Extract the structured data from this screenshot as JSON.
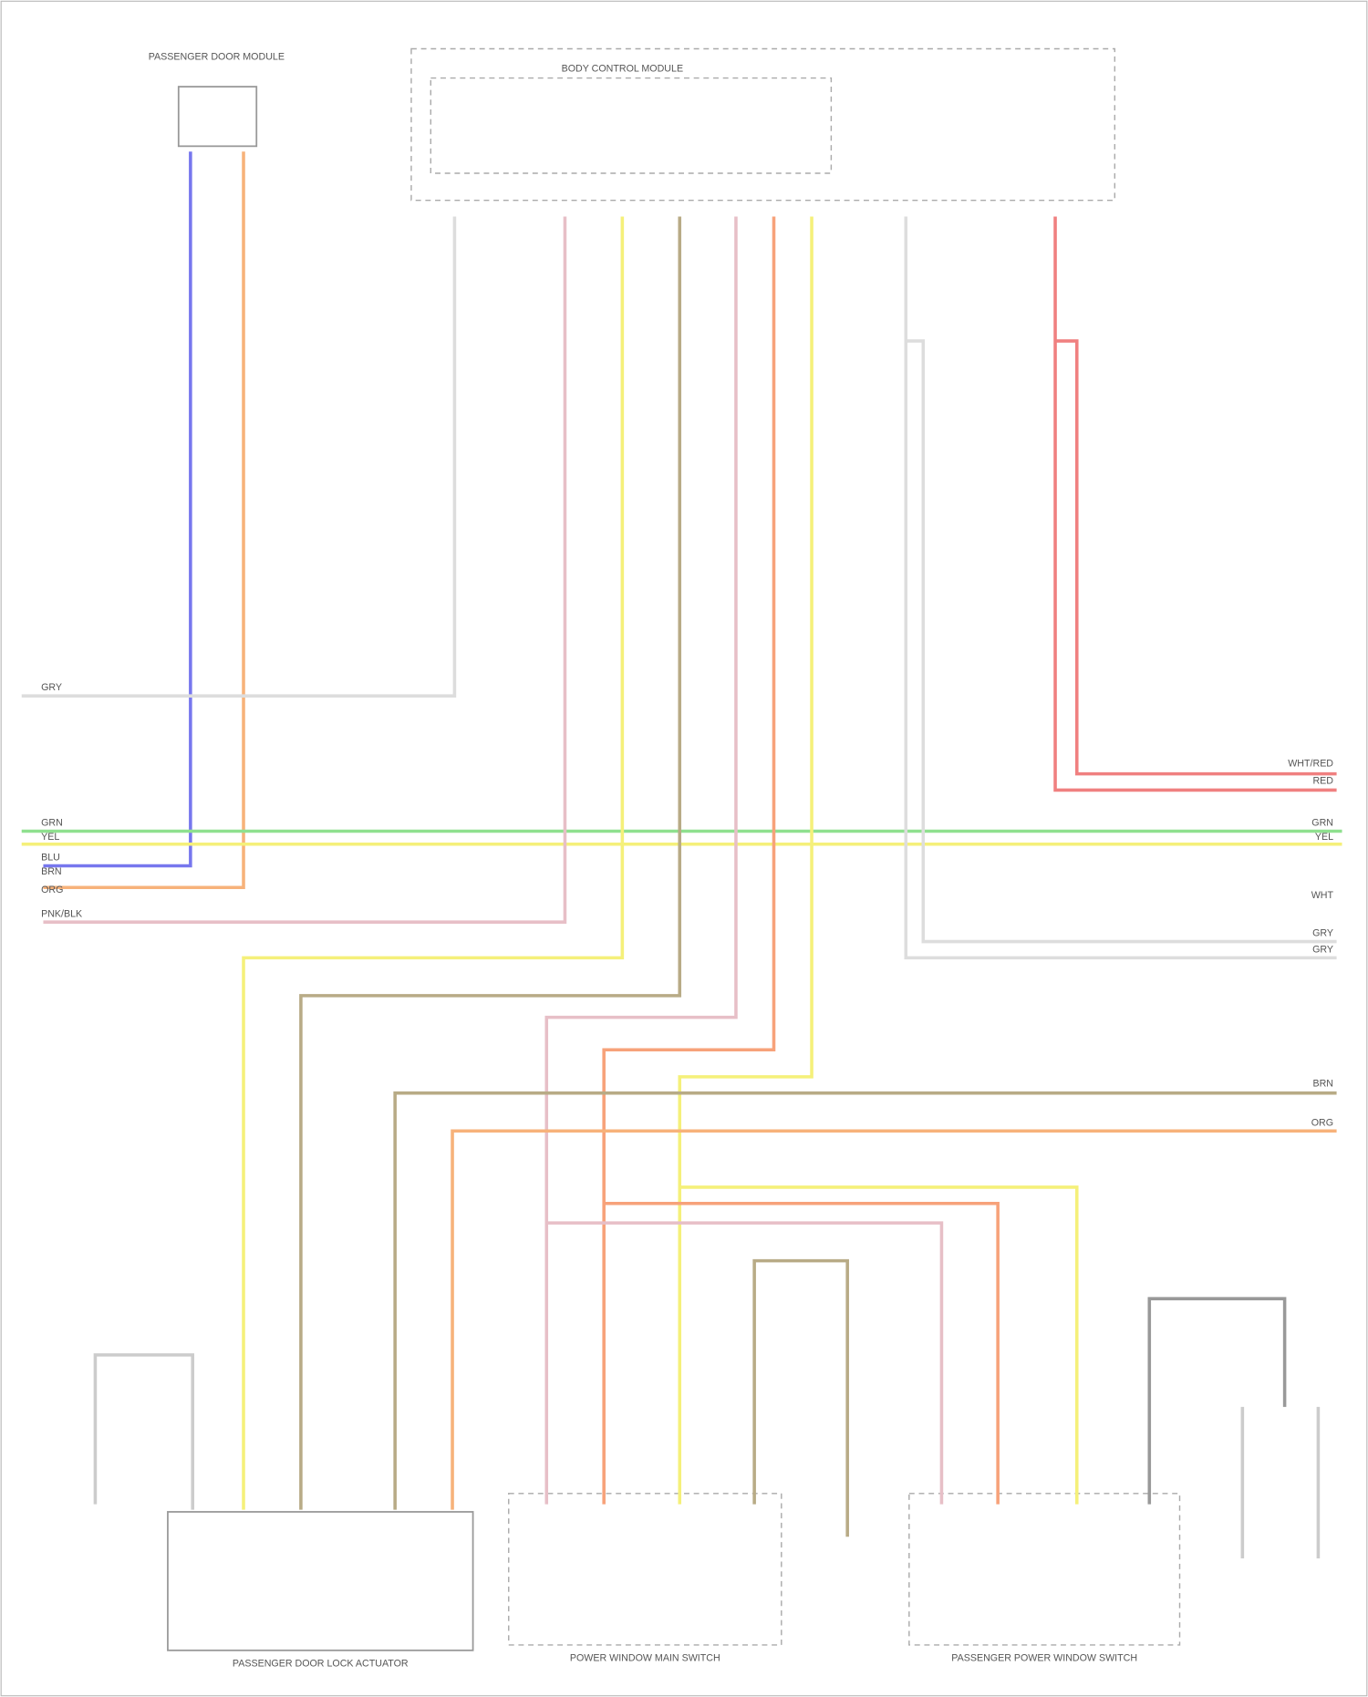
{
  "components": [
    {
      "label": "PASSENGER DOOR MODULE"
    },
    {
      "label": "BODY CONTROL MODULE"
    },
    {
      "label": "PASSENGER DOOR LOCK ACTUATOR"
    },
    {
      "label": "POWER WINDOW MAIN SWITCH"
    },
    {
      "label": "PASSENGER POWER WINDOW SWITCH"
    }
  ],
  "left_wire_labels": [
    "GRY",
    "GRN",
    "YEL",
    "BLU",
    "BRN",
    "ORG",
    "PNK/BLK"
  ],
  "right_wire_labels": [
    "WHT/RED",
    "RED",
    "GRN",
    "YEL",
    "WHT",
    "GRY",
    "GRY",
    "BRN",
    "ORG"
  ]
}
